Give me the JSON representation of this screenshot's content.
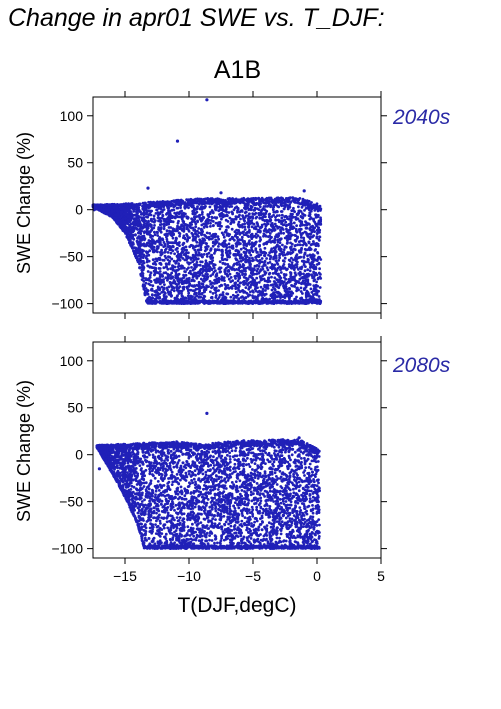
{
  "title": "Change in apr01 SWE vs. T_DJF:",
  "scenario": "A1B",
  "panels": [
    {
      "period": "2040s",
      "ylabel": "SWE Change (%)"
    },
    {
      "period": "2080s",
      "ylabel": "SWE Change (%)"
    }
  ],
  "xlabel": "T(DJF,degC)",
  "colors": {
    "points": "#2020b8",
    "label": "#2a2aa6"
  },
  "chart_data": [
    {
      "type": "scatter",
      "title": "2040s",
      "xlabel": "",
      "ylabel": "SWE Change (%)",
      "xlim": [
        -17.5,
        5
      ],
      "ylim": [
        -110,
        120
      ],
      "xticks": [
        -15,
        -10,
        -5,
        0,
        5
      ],
      "yticks": [
        100,
        50,
        0,
        -50,
        -100
      ],
      "ytick_labels": [
        "100",
        "50",
        "0",
        "−50",
        "−100"
      ],
      "grid": false,
      "series": [
        {
          "point_cloud": {
            "x_range": [
              -17.5,
              0.3
            ],
            "lower_y": -100,
            "upper_envelope": [
              [
                -17.5,
                5
              ],
              [
                -14,
                7
              ],
              [
                -12,
                9
              ],
              [
                -9,
                12
              ],
              [
                -6,
                12
              ],
              [
                -3,
                13
              ],
              [
                -1.5,
                13
              ],
              [
                0.3,
                5
              ]
            ],
            "lower_envelope": [
              [
                -17.5,
                3
              ],
              [
                -16,
                -8
              ],
              [
                -15,
                -25
              ],
              [
                -14,
                -55
              ],
              [
                -13.3,
                -100
              ],
              [
                -1,
                -100
              ],
              [
                0.3,
                -100
              ]
            ]
          },
          "outliers": [
            [
              -8.6,
              117
            ],
            [
              -10.9,
              73
            ],
            [
              -13.2,
              23
            ],
            [
              -1.0,
              20
            ],
            [
              -7.5,
              18
            ]
          ]
        }
      ]
    },
    {
      "type": "scatter",
      "title": "2080s",
      "xlabel": "T(DJF,degC)",
      "ylabel": "SWE Change (%)",
      "xlim": [
        -17.5,
        5
      ],
      "ylim": [
        -110,
        120
      ],
      "xticks": [
        -15,
        -10,
        -5,
        0,
        5
      ],
      "xtick_labels": [
        "−15",
        "−10",
        "−5",
        "0",
        "5"
      ],
      "yticks": [
        100,
        50,
        0,
        -50,
        -100
      ],
      "ytick_labels": [
        "100",
        "50",
        "0",
        "−50",
        "−100"
      ],
      "grid": false,
      "series": [
        {
          "point_cloud": {
            "x_range": [
              -17.2,
              0.2
            ],
            "lower_y": -100,
            "upper_envelope": [
              [
                -17.2,
                10
              ],
              [
                -14,
                12
              ],
              [
                -11,
                14
              ],
              [
                -9,
                11
              ],
              [
                -6,
                15
              ],
              [
                -3,
                16
              ],
              [
                -1.5,
                17
              ],
              [
                0.2,
                5
              ]
            ],
            "lower_envelope": [
              [
                -17.2,
                8
              ],
              [
                -16,
                -20
              ],
              [
                -15,
                -45
              ],
              [
                -14,
                -75
              ],
              [
                -13.5,
                -100
              ],
              [
                -1,
                -100
              ],
              [
                0.2,
                -100
              ]
            ]
          },
          "outliers": [
            [
              -8.6,
              44
            ],
            [
              -17.0,
              -15
            ],
            [
              -1.4,
              18
            ]
          ]
        }
      ]
    }
  ]
}
